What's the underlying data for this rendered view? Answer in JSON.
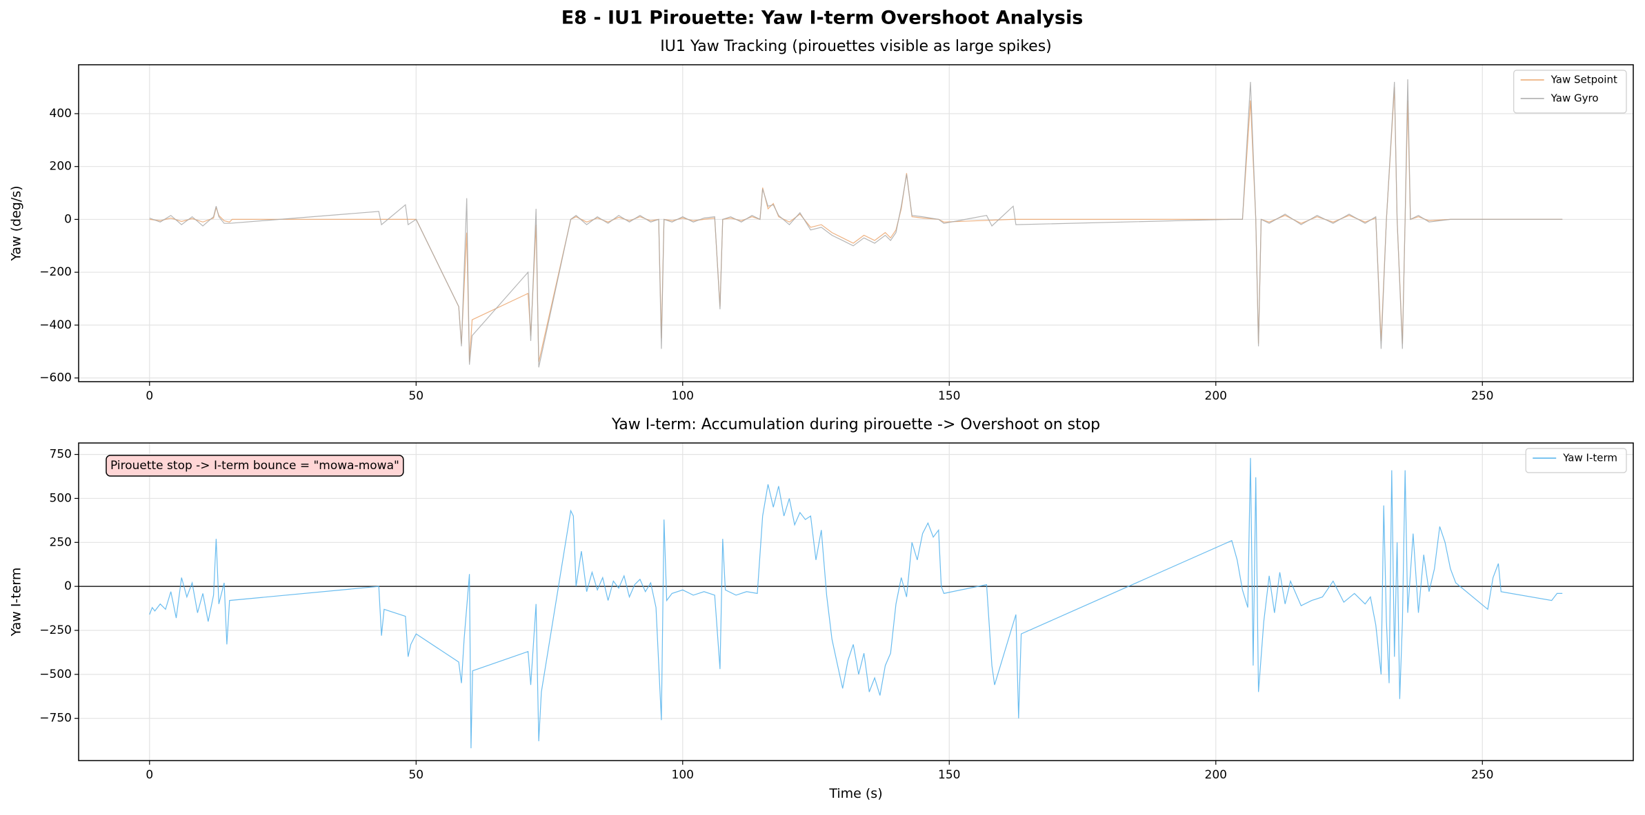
{
  "title": "E8 - IU1 Pirouette: Yaw I-term Overshoot Analysis",
  "chart_data": [
    {
      "type": "line",
      "title": "IU1 Yaw Tracking (pirouettes visible as large spikes)",
      "ylabel": "Yaw (deg/s)",
      "xlim": [
        -13.3,
        278.3
      ],
      "ylim": [
        -614,
        585
      ],
      "xticks": [
        0,
        50,
        100,
        150,
        200,
        250
      ],
      "yticks": [
        {
          "value": -600,
          "label": "−600"
        },
        {
          "value": -400,
          "label": "−400"
        },
        {
          "value": -200,
          "label": "−200"
        },
        0,
        200,
        400
      ],
      "grid": true,
      "legend": "upper right",
      "series": [
        {
          "name": "Yaw Setpoint",
          "color": "#eba56c",
          "x": [
            0,
            2,
            4,
            6,
            8,
            10,
            12,
            12.5,
            13,
            14,
            15,
            15.5,
            43,
            45,
            48,
            50,
            58,
            58.5,
            59.5,
            60,
            60.5,
            71,
            71.5,
            72.5,
            73,
            79,
            80,
            82,
            84,
            86,
            88,
            90,
            92,
            94,
            95.5,
            96,
            96.5,
            98,
            100,
            102,
            104,
            106,
            107,
            107.5,
            109,
            111,
            113,
            114.5,
            115,
            116,
            117,
            118,
            120,
            122,
            124,
            126,
            128,
            130,
            132,
            134,
            136,
            138,
            139,
            140,
            141,
            142,
            143,
            145,
            148,
            149,
            162,
            203,
            205,
            206.5,
            207.5,
            208,
            208.5,
            210,
            213,
            216,
            219,
            222,
            225,
            228,
            230,
            231,
            232,
            233.5,
            234,
            235,
            235.5,
            236,
            236.5,
            238,
            240,
            244,
            265
          ],
          "values": [
            0,
            -5,
            5,
            -8,
            3,
            -10,
            5,
            45,
            15,
            -5,
            -10,
            0,
            0,
            0,
            0,
            0,
            -330,
            -470,
            -50,
            -540,
            -380,
            -280,
            -440,
            -20,
            -540,
            0,
            10,
            -10,
            5,
            -10,
            8,
            -5,
            10,
            -5,
            0,
            -450,
            0,
            -5,
            5,
            -5,
            0,
            5,
            -330,
            0,
            5,
            -5,
            10,
            0,
            120,
            40,
            60,
            10,
            -10,
            20,
            -30,
            -20,
            -50,
            -70,
            -90,
            -60,
            -80,
            -50,
            -70,
            -40,
            40,
            175,
            10,
            5,
            0,
            -10,
            0,
            0,
            0,
            450,
            0,
            -470,
            0,
            -10,
            15,
            -15,
            10,
            -10,
            15,
            -10,
            5,
            -460,
            0,
            500,
            0,
            -470,
            0,
            450,
            0,
            10,
            -5,
            0,
            0
          ]
        },
        {
          "name": "Yaw Gyro",
          "color": "#a8a8a8",
          "x": [
            0,
            2,
            4,
            6,
            8,
            10,
            12,
            12.5,
            13,
            14,
            15,
            43,
            43.5,
            48,
            48.5,
            50,
            58,
            58.5,
            59.5,
            60,
            60.5,
            71,
            71.5,
            72.5,
            73,
            79,
            80,
            82,
            84,
            86,
            88,
            90,
            92,
            94,
            95.5,
            96,
            96.5,
            98,
            100,
            102,
            104,
            106,
            107,
            107.5,
            109,
            111,
            113,
            114.5,
            115,
            116,
            117,
            118,
            120,
            122,
            124,
            126,
            128,
            130,
            132,
            134,
            136,
            138,
            139,
            140,
            141,
            142,
            143,
            145,
            148,
            149,
            157,
            158,
            162,
            162.5,
            203,
            205,
            206.5,
            207.5,
            208,
            208.5,
            210,
            213,
            216,
            219,
            222,
            225,
            228,
            230,
            231,
            232,
            233.5,
            234,
            235,
            235.5,
            236,
            236.5,
            238,
            240,
            244,
            265
          ],
          "values": [
            5,
            -10,
            15,
            -20,
            10,
            -25,
            10,
            50,
            10,
            -15,
            -15,
            30,
            -20,
            55,
            -20,
            0,
            -330,
            -480,
            80,
            -550,
            -440,
            -200,
            -460,
            40,
            -560,
            0,
            15,
            -20,
            10,
            -15,
            15,
            -10,
            15,
            -10,
            0,
            -490,
            0,
            -10,
            10,
            -10,
            5,
            10,
            -340,
            0,
            10,
            -10,
            15,
            0,
            115,
            50,
            55,
            15,
            -20,
            25,
            -40,
            -30,
            -60,
            -80,
            -100,
            -70,
            -90,
            -60,
            -80,
            -50,
            50,
            170,
            15,
            10,
            0,
            -15,
            15,
            -25,
            50,
            -20,
            0,
            0,
            520,
            0,
            -480,
            0,
            -15,
            20,
            -20,
            15,
            -15,
            20,
            -15,
            10,
            -490,
            0,
            520,
            0,
            -490,
            0,
            530,
            0,
            15,
            -10,
            0,
            0
          ]
        }
      ]
    },
    {
      "type": "line",
      "title": "Yaw I-term: Accumulation during pirouette -> Overshoot on stop",
      "xlabel": "Time (s)",
      "ylabel": "Yaw I-term",
      "xlim": [
        -13.3,
        278.3
      ],
      "ylim": [
        -990,
        815
      ],
      "xticks": [
        0,
        50,
        100,
        150,
        200,
        250
      ],
      "yticks": [
        {
          "value": -750,
          "label": "−750"
        },
        {
          "value": -500,
          "label": "−500"
        },
        {
          "value": -250,
          "label": "−250"
        },
        0,
        250,
        500,
        750
      ],
      "grid": true,
      "legend": "upper right",
      "reference_line": 0,
      "annotation": "Pirouette stop -> I-term bounce = \"mowa-mowa\"",
      "series": [
        {
          "name": "Yaw I-term",
          "color": "#4fb0ec",
          "x": [
            0,
            0.5,
            1,
            2,
            3,
            4,
            5,
            6,
            7,
            8,
            9,
            10,
            11,
            12,
            12.5,
            13,
            14,
            14.5,
            15,
            43,
            43.5,
            44,
            48,
            48.5,
            49,
            50,
            58,
            58.5,
            59,
            60,
            60.3,
            60.6,
            71,
            71.5,
            72.5,
            73,
            73.5,
            79,
            79.5,
            80,
            81,
            82,
            83,
            84,
            85,
            86,
            87,
            88,
            89,
            90,
            91,
            92,
            93,
            94,
            95,
            96,
            96.5,
            97,
            98,
            100,
            102,
            104,
            106,
            107,
            107.5,
            108,
            110,
            112,
            114,
            115,
            116,
            117,
            118,
            119,
            120,
            121,
            122,
            123,
            124,
            125,
            126,
            127,
            128,
            129,
            130,
            131,
            132,
            133,
            134,
            135,
            136,
            137,
            138,
            139,
            140,
            141,
            142,
            143,
            144,
            145,
            146,
            147,
            148,
            148.5,
            149,
            157,
            158,
            158.5,
            162.5,
            163,
            163.5,
            203,
            204,
            205,
            206,
            206.5,
            207,
            207.5,
            208,
            209,
            210,
            211,
            212,
            213,
            214,
            215,
            216,
            218,
            220,
            222,
            224,
            226,
            228,
            229,
            230,
            231,
            231.5,
            232,
            232.5,
            233,
            233.5,
            234,
            234.5,
            235,
            235.5,
            236,
            237,
            238,
            239,
            240,
            241,
            242,
            243,
            244,
            245,
            251,
            252,
            253,
            253.5,
            263,
            264,
            265
          ],
          "values": [
            -160,
            -120,
            -140,
            -100,
            -130,
            -30,
            -180,
            50,
            -60,
            20,
            -150,
            -40,
            -200,
            -50,
            270,
            -100,
            20,
            -330,
            -80,
            0,
            -280,
            -130,
            -170,
            -400,
            -330,
            -270,
            -430,
            -550,
            -300,
            70,
            -920,
            -480,
            -370,
            -560,
            -100,
            -880,
            -600,
            430,
            400,
            0,
            200,
            -30,
            80,
            -20,
            50,
            -80,
            30,
            -10,
            60,
            -60,
            10,
            40,
            -30,
            20,
            -120,
            -760,
            380,
            -80,
            -40,
            -20,
            -50,
            -30,
            -50,
            -470,
            270,
            -20,
            -50,
            -30,
            -40,
            400,
            580,
            450,
            570,
            400,
            500,
            350,
            420,
            380,
            400,
            150,
            320,
            -50,
            -300,
            -440,
            -580,
            -420,
            -330,
            -500,
            -380,
            -600,
            -520,
            -620,
            -450,
            -380,
            -100,
            50,
            -60,
            250,
            150,
            300,
            360,
            280,
            320,
            0,
            -40,
            10,
            -450,
            -560,
            -160,
            -750,
            -270,
            260,
            150,
            -20,
            -120,
            730,
            -450,
            620,
            -600,
            -200,
            60,
            -150,
            80,
            -100,
            30,
            -40,
            -110,
            -80,
            -60,
            30,
            -90,
            -40,
            -100,
            -60,
            -220,
            -500,
            460,
            -200,
            -550,
            660,
            -400,
            250,
            -640,
            -200,
            660,
            -150,
            300,
            -150,
            180,
            -30,
            100,
            340,
            250,
            100,
            20,
            -130,
            50,
            130,
            -30,
            -80,
            -40,
            -40
          ]
        }
      ]
    }
  ]
}
